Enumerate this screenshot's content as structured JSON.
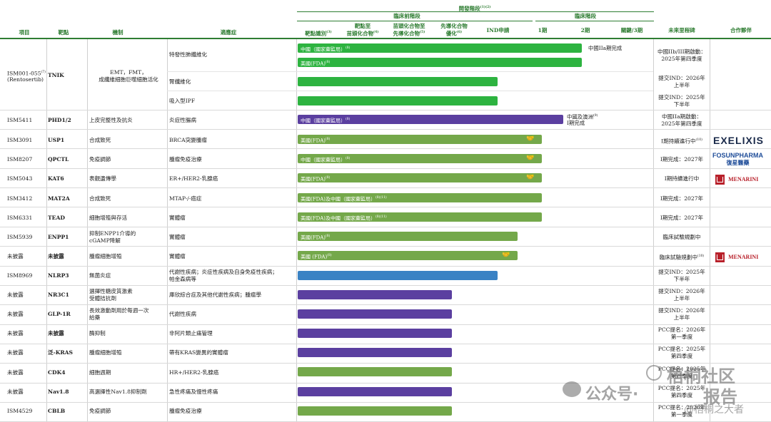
{
  "header": {
    "dev_stage": "開發階段",
    "dev_stage_sup": "(1)(2)",
    "preclinical": "臨床前階段",
    "clinical": "臨床階段",
    "cols": {
      "code": "項目",
      "target": "靶點",
      "mechanism": "機制",
      "indication": "適應症",
      "target_id": "靶點識別",
      "target_id_sup": "(3)",
      "hit": [
        "靶點至",
        "苗頭化合物"
      ],
      "hit_sup": "(4)",
      "lead": [
        "苗頭化合物至",
        "先導化合物"
      ],
      "lead_sup": "(5)",
      "opt": [
        "先導化合物",
        "優化"
      ],
      "opt_sup": "(6)",
      "ind": "IND申請",
      "p1": "1期",
      "p2": "2期",
      "p3": "關鍵/3期",
      "milestone": "未來里程碑",
      "partner": "合作夥伴"
    }
  },
  "rows": [
    {
      "code": "ISM001-055",
      "code_sup": "(7)",
      "code2": "(Rentosertib)",
      "target": "TNIK",
      "mechanism": [
        "EMT，FMT，",
        "成纖維細胞巨噬細胞活化"
      ]
    },
    {
      "code": "ISM5411",
      "target": "PHD1/2",
      "mechanism": [
        "上皮完整性及抗炎"
      ],
      "indication": "炎症性腸病",
      "bar": "中國（國家藥監局）",
      "bar_sup": "(8)",
      "note": [
        "中國及澳洲",
        "I期完成"
      ],
      "note_sup": "(9)",
      "milestone": [
        "中國IIa期啟動：",
        "2025年第四季度"
      ]
    },
    {
      "code": "ISM3091",
      "target": "USP1",
      "mechanism": [
        "合成致死"
      ],
      "indication": "BRCA突變腫瘤",
      "bar": "美國(FDA)",
      "bar_sup": "(8)",
      "milestone": [
        "I期持續進行中"
      ],
      "ms_sup": "(10)",
      "partner": "EXELIXIS"
    },
    {
      "code": "ISM8207",
      "target": "QPCTL",
      "mechanism": [
        "免疫調節"
      ],
      "indication": "腫瘤免疫治療",
      "bar": "中國（國家藥監局）",
      "bar_sup": "(8)",
      "milestone": [
        "I期完成：2027年"
      ],
      "partner": "FOSUNPHARMA",
      "partner2": "復星醫藥"
    },
    {
      "code": "ISM5043",
      "target": "KAT6",
      "mechanism": [
        "表觀遺傳學"
      ],
      "indication": "ER+/HER2-乳腺癌",
      "bar": "美國(FDA)",
      "bar_sup": "(8)",
      "milestone": [
        "I期持續進行中"
      ],
      "partner": "MENARINI"
    },
    {
      "code": "ISM3412",
      "target": "MAT2A",
      "mechanism": [
        "合成致死"
      ],
      "indication": "MTAP-/-癌症",
      "bar": "美國(FDA)及中國（國家藥監局）",
      "bar_sup": "(8)(11)",
      "milestone": [
        "I期完成：2027年"
      ]
    },
    {
      "code": "ISM6331",
      "target": "TEAD",
      "mechanism": [
        "細胞增殖與存活"
      ],
      "indication": "實體瘤",
      "bar": "美國(FDA)及中國（國家藥監局）",
      "bar_sup": "(8)(11)",
      "milestone": [
        "I期完成：2027年"
      ]
    },
    {
      "code": "ISM5939",
      "target": "ENPP1",
      "mechanism": [
        "抑制ENPP1介導的",
        "cGAMP降解"
      ],
      "indication": "實體瘤",
      "bar": "美國(FDA)",
      "bar_sup": "(8)",
      "milestone": [
        "臨床試驗規劃中"
      ]
    },
    {
      "code": "未披露",
      "target": "未披露",
      "mechanism": [
        "腫瘤細胞增殖"
      ],
      "indication": "實體瘤",
      "bar": "美國 (FDA)",
      "bar_sup": "(8)",
      "milestone": [
        "臨床試驗規劃中"
      ],
      "ms_sup": "(10)",
      "partner": "MENARINI"
    },
    {
      "code": "ISM8969",
      "target": "NLRP3",
      "mechanism": [
        "無菌炎症"
      ],
      "indication": [
        "代謝性疾病；炎症性疾病及自身免疫性疾病；",
        "帕金森病等"
      ],
      "milestone": [
        "提交IND：2025年",
        "下半年"
      ]
    },
    {
      "code": "未披露",
      "target": "NR3C1",
      "mechanism": [
        "選擇性糖皮質激素",
        "受體拮抗劑"
      ],
      "indication": "庫欣綜合症及其他代謝性疾病；腫瘤學",
      "milestone": [
        "提交IND：2026年",
        "上半年"
      ]
    },
    {
      "code": "未披露",
      "target": "GLP-1R",
      "mechanism": [
        "長效激動劑用於每週一次",
        "給藥"
      ],
      "indication": "代謝性疾病",
      "milestone": [
        "提交IND：2026年",
        "上半年"
      ]
    },
    {
      "code": "未披露",
      "target": "未披露",
      "mechanism": [
        "酶抑制"
      ],
      "indication": "非阿片類止痛管理",
      "milestone": [
        "PCC提名：2026年",
        "第一季度"
      ]
    },
    {
      "code": "未披露",
      "target": "泛-KRAS",
      "mechanism": [
        "腫瘤細胞增殖"
      ],
      "indication": "帶有KRAS變異的實體瘤",
      "milestone": [
        "PCC提名：2025年",
        "第四季度"
      ]
    },
    {
      "code": "未披露",
      "target": "CDK4",
      "mechanism": [
        "細胞週期"
      ],
      "indication": "HR+/HER2-乳腺癌",
      "milestone": [
        "PCC提名：2025年",
        "第四季度"
      ]
    },
    {
      "code": "未披露",
      "target": "Nav1.8",
      "mechanism": [
        "高選擇性Nav1.8抑制劑"
      ],
      "indication": "急性疼痛及慢性疼痛",
      "milestone": [
        "PCC提名：2025年",
        "第四季度"
      ]
    },
    {
      "code": "ISM4529",
      "target": "CBLB",
      "mechanism": [
        "免疫調節"
      ],
      "indication": "腫瘤免疫治療",
      "milestone": [
        "PCC提名：2026年",
        "第一季度"
      ]
    }
  ],
  "ism055": {
    "subrows": [
      {
        "indication": "特發性肺纖維化",
        "bars": [
          {
            "label": "中國（國家藥監局）",
            "sup": "(8)"
          },
          {
            "label": "美國(FDA)",
            "sup": "(8)"
          }
        ],
        "note": "中國IIa期完成",
        "milestone": [
          "中國IIb/III期啟動：",
          "2025年第四季度"
        ]
      },
      {
        "indication": "腎纖維化",
        "milestone": [
          "提交IND：2026年",
          "上半年"
        ]
      },
      {
        "indication": "吸入型IPF",
        "milestone": [
          "提交IND：2025年",
          "下半年"
        ]
      }
    ]
  },
  "watermark": {
    "text1": "梧桐社区",
    "text2": "公众号·",
    "text3": "报告",
    "text4": "@梧桐之大者"
  },
  "colors": {
    "green_bright": "#2db340",
    "green_olive": "#74a84a",
    "purple": "#5b3fa0",
    "blue": "#3a82c4",
    "header_green": "#2e7d32"
  }
}
